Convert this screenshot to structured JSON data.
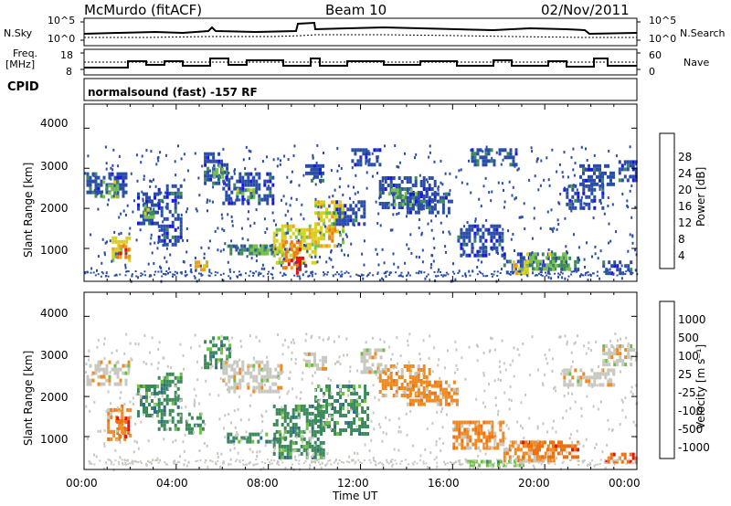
{
  "header": {
    "station": "McMurdo (fitACF)",
    "beam": "Beam 10",
    "date": "02/Nov/2011"
  },
  "strip_labels": {
    "nsky": "N.Sky",
    "nsky_ticks": [
      "10^5",
      "10^0"
    ],
    "nsearch": "N.Search",
    "nsearch_ticks": [
      "10^5",
      "10^0"
    ],
    "freq_l1": "Freq.",
    "freq_l2": "[MHz]",
    "freq_ticks": [
      "18",
      "8"
    ],
    "nave": "Nave",
    "nave_ticks": [
      "60",
      "0"
    ],
    "cpid": "CPID",
    "cpid_value": "normalsound (fast) -157 RF"
  },
  "chart_data": [
    {
      "type": "heatmap",
      "name": "power",
      "ylabel": "Slant Range [km]",
      "yticks": [
        "4000",
        "3000",
        "2000",
        "1000"
      ],
      "xticks": [
        "00:00",
        "04:00",
        "08:00",
        "12:00",
        "16:00",
        "20:00",
        "00:00"
      ],
      "xlim_hours": [
        0,
        24
      ],
      "ylim_km": [
        180,
        4600
      ],
      "colorbar": {
        "label": "Power [dB]",
        "ticks": [
          "28",
          "24",
          "20",
          "16",
          "12",
          "8",
          "4"
        ],
        "colors": [
          "#e01010",
          "#f07818",
          "#f0a020",
          "#d8d020",
          "#7ac050",
          "#3c8a5a",
          "#2a4ea8",
          "#1818e0"
        ]
      }
    },
    {
      "type": "heatmap",
      "name": "velocity",
      "ylabel": "Slant Range [km]",
      "yticks": [
        "4000",
        "3000",
        "2000",
        "1000"
      ],
      "xticks": [
        "00:00",
        "04:00",
        "08:00",
        "12:00",
        "16:00",
        "20:00",
        "00:00"
      ],
      "xlabel": "Time UT",
      "xlim_hours": [
        0,
        24
      ],
      "ylim_km": [
        180,
        4600
      ],
      "colorbar": {
        "label": "Velocity [m s⁻¹]",
        "ticks": [
          "1000",
          "500",
          "100",
          "25",
          "-25",
          "-100",
          "-500",
          "-1000"
        ],
        "colors": [
          "#1c3ca8",
          "#2e6a8a",
          "#3a8a5a",
          "#6cc040",
          "#c8c8c0",
          "#f08a20",
          "#f07010",
          "#e81010"
        ]
      }
    }
  ]
}
